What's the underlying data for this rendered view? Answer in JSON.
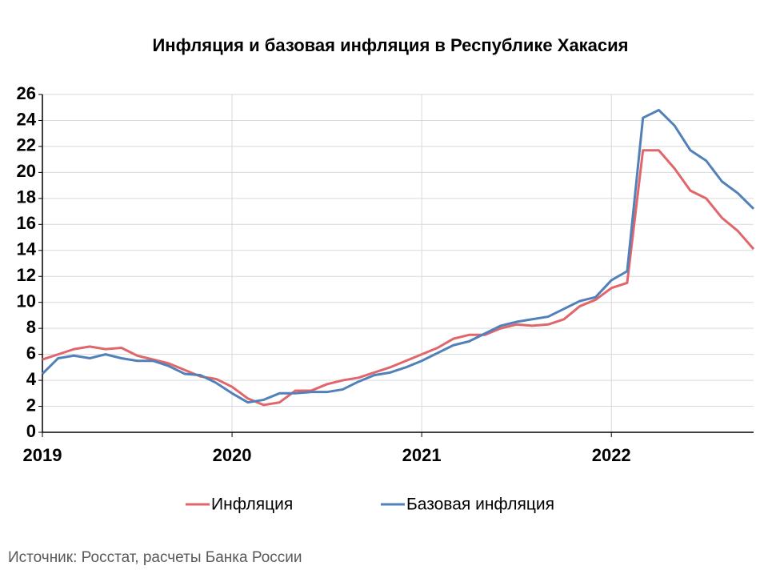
{
  "chart_data": {
    "type": "line",
    "title": "Инфляция и базовая инфляция в Республике Хакасия",
    "source": "Источник: Росстат, расчеты Банка России",
    "categories": [
      "2019",
      null,
      null,
      null,
      null,
      null,
      null,
      null,
      null,
      null,
      null,
      null,
      "2020",
      null,
      null,
      null,
      null,
      null,
      null,
      null,
      null,
      null,
      null,
      null,
      "2021",
      null,
      null,
      null,
      null,
      null,
      null,
      null,
      null,
      null,
      null,
      null,
      "2022",
      null,
      null,
      null,
      null,
      null,
      null,
      null,
      null,
      null
    ],
    "series": [
      {
        "name": "Инфляция",
        "color": "#e0666b",
        "values": [
          5.6,
          6.0,
          6.4,
          6.6,
          6.4,
          6.5,
          5.9,
          5.6,
          5.3,
          4.8,
          4.3,
          4.1,
          3.5,
          2.6,
          2.1,
          2.3,
          3.2,
          3.2,
          3.7,
          4.0,
          4.2,
          4.6,
          5.0,
          5.5,
          6.0,
          6.5,
          7.2,
          7.5,
          7.5,
          8.0,
          8.3,
          8.2,
          8.3,
          8.7,
          9.7,
          10.2,
          11.1,
          11.5,
          21.7,
          21.7,
          20.3,
          18.6,
          18.0,
          16.5,
          15.5,
          14.1
        ]
      },
      {
        "name": "Базовая инфляция",
        "color": "#5181b8",
        "values": [
          4.5,
          5.7,
          5.9,
          5.7,
          6.0,
          5.7,
          5.5,
          5.5,
          5.1,
          4.5,
          4.4,
          3.8,
          3.0,
          2.3,
          2.5,
          3.0,
          3.0,
          3.1,
          3.1,
          3.3,
          3.9,
          4.4,
          4.6,
          5.0,
          5.5,
          6.1,
          6.7,
          7.0,
          7.6,
          8.2,
          8.5,
          8.7,
          8.9,
          9.5,
          10.1,
          10.4,
          11.7,
          12.4,
          24.2,
          24.8,
          23.6,
          21.7,
          20.9,
          19.3,
          18.4,
          17.2
        ]
      }
    ],
    "ylim": [
      0,
      26
    ],
    "yticks": [
      0,
      2,
      4,
      6,
      8,
      10,
      12,
      14,
      16,
      18,
      20,
      22,
      24,
      26
    ],
    "grid": true
  }
}
